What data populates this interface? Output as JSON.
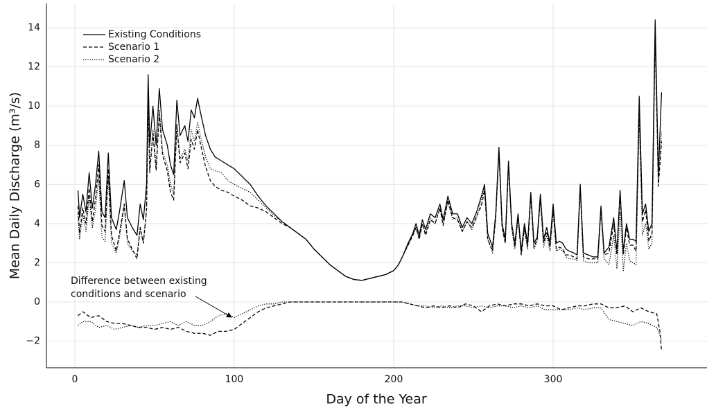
{
  "chart_data": {
    "type": "line",
    "x_label": "Day of the Year",
    "y_label": "Mean Daily Discharge (m³/s)",
    "annotation": [
      "Difference between existing",
      "conditions and scenario"
    ],
    "xlim": [
      -17.8,
      396.5
    ],
    "ylim": [
      -3.36,
      15.24
    ],
    "xticks": [
      0,
      100,
      200,
      300
    ],
    "yticks": [
      {
        "value": -2,
        "label": "−2"
      },
      0,
      2,
      4,
      6,
      8,
      10,
      12,
      14
    ],
    "grid": true,
    "legend": "upper left",
    "x": [
      2,
      3,
      5,
      7,
      9,
      11,
      13,
      15,
      17,
      19,
      21,
      23,
      26,
      28,
      31,
      33,
      36,
      39,
      41,
      43,
      45,
      46,
      47,
      49,
      51,
      53,
      55,
      58,
      60,
      62,
      64,
      66,
      69,
      71,
      73,
      75,
      77,
      79,
      82,
      85,
      88,
      92,
      96,
      100,
      105,
      110,
      115,
      120,
      125,
      130,
      135,
      140,
      145,
      150,
      155,
      160,
      165,
      170,
      175,
      180,
      185,
      190,
      195,
      200,
      203,
      206,
      209,
      212,
      214,
      216,
      218,
      220,
      223,
      226,
      229,
      231,
      234,
      237,
      240,
      243,
      246,
      249,
      252,
      255,
      257,
      259,
      262,
      264,
      266,
      268,
      270,
      272,
      274,
      276,
      278,
      280,
      282,
      284,
      286,
      288,
      290,
      292,
      294,
      296,
      298,
      300,
      302,
      304,
      306,
      308,
      310,
      313,
      315,
      317,
      319,
      322,
      325,
      328,
      330,
      332,
      335,
      338,
      340,
      342,
      344,
      346,
      348,
      350,
      352,
      354,
      356,
      358,
      360,
      362,
      364,
      366,
      368
    ],
    "series": [
      {
        "name": "Existing Conditions",
        "color": "#000000",
        "dash": "solid",
        "values": [
          5.7,
          4.3,
          5.5,
          4.6,
          6.6,
          4.8,
          6.0,
          7.7,
          4.6,
          4.3,
          7.6,
          4.3,
          3.7,
          4.6,
          6.2,
          4.3,
          3.8,
          3.4,
          5.0,
          4.2,
          6.0,
          11.6,
          8.0,
          10.0,
          8.0,
          10.9,
          8.8,
          8.0,
          7.0,
          6.5,
          10.3,
          8.5,
          9.0,
          8.2,
          9.8,
          9.4,
          10.4,
          9.6,
          8.5,
          7.8,
          7.4,
          7.2,
          7.0,
          6.8,
          6.4,
          6.0,
          5.4,
          4.9,
          4.5,
          4.1,
          3.8,
          3.5,
          3.2,
          2.7,
          2.3,
          1.9,
          1.6,
          1.3,
          1.15,
          1.1,
          1.2,
          1.3,
          1.4,
          1.6,
          1.9,
          2.4,
          3.0,
          3.5,
          4.0,
          3.4,
          4.2,
          3.7,
          4.5,
          4.3,
          5.0,
          4.2,
          5.4,
          4.5,
          4.5,
          3.8,
          4.3,
          4.0,
          4.6,
          5.4,
          6.0,
          3.5,
          2.8,
          4.5,
          7.9,
          4.0,
          3.2,
          7.2,
          4.0,
          3.0,
          4.5,
          2.6,
          4.0,
          3.0,
          5.6,
          3.0,
          3.3,
          5.5,
          3.2,
          3.8,
          3.0,
          5.0,
          3.0,
          3.1,
          3.0,
          2.7,
          2.6,
          2.5,
          2.4,
          6.0,
          2.5,
          2.4,
          2.3,
          2.3,
          4.9,
          2.5,
          2.8,
          4.3,
          2.6,
          5.7,
          2.6,
          4.0,
          3.2,
          3.2,
          3.1,
          10.5,
          4.5,
          5.0,
          3.6,
          4.0,
          14.4,
          6.5,
          10.7
        ]
      },
      {
        "name": "Scenario 1",
        "color": "#000000",
        "dash": "dashed",
        "values": [
          4.9,
          3.5,
          4.8,
          4.0,
          5.8,
          4.1,
          5.3,
          7.0,
          3.9,
          3.6,
          6.8,
          3.4,
          2.6,
          3.5,
          5.0,
          3.2,
          2.7,
          2.2,
          3.8,
          3.0,
          4.7,
          10.3,
          6.6,
          8.6,
          6.7,
          9.6,
          7.5,
          6.7,
          5.6,
          5.2,
          9.0,
          7.1,
          7.6,
          6.8,
          8.3,
          7.8,
          8.8,
          8.0,
          6.9,
          6.2,
          5.9,
          5.7,
          5.6,
          5.4,
          5.2,
          4.9,
          4.8,
          4.6,
          4.3,
          4.0,
          3.8,
          3.5,
          3.2,
          2.7,
          2.3,
          1.9,
          1.6,
          1.3,
          1.15,
          1.1,
          1.2,
          1.3,
          1.4,
          1.6,
          1.9,
          2.4,
          2.9,
          3.4,
          3.8,
          3.2,
          4.0,
          3.4,
          4.2,
          4.0,
          4.8,
          3.9,
          5.2,
          4.3,
          4.2,
          3.6,
          4.1,
          3.8,
          4.4,
          4.9,
          5.7,
          3.2,
          2.6,
          4.3,
          7.7,
          3.8,
          3.0,
          7.0,
          3.9,
          2.8,
          4.4,
          2.4,
          3.8,
          2.8,
          5.4,
          2.8,
          3.2,
          5.3,
          3.0,
          3.6,
          2.8,
          4.7,
          2.7,
          2.8,
          2.7,
          2.4,
          2.4,
          2.3,
          2.2,
          5.8,
          2.3,
          2.2,
          2.2,
          2.2,
          4.8,
          2.4,
          2.5,
          4.0,
          2.4,
          5.5,
          2.4,
          3.8,
          2.9,
          2.9,
          2.6,
          10.0,
          4.1,
          4.7,
          3.1,
          3.5,
          13.9,
          5.9,
          8.2
        ]
      },
      {
        "name": "Scenario 2",
        "color": "#000000",
        "dash": "dotted",
        "values": [
          4.5,
          3.2,
          4.5,
          3.6,
          5.4,
          3.8,
          4.7,
          6.4,
          3.3,
          3.1,
          6.4,
          3.0,
          2.5,
          3.3,
          4.9,
          3.0,
          2.6,
          2.4,
          3.8,
          3.0,
          4.8,
          10.4,
          6.8,
          8.8,
          6.9,
          9.8,
          7.7,
          7.0,
          6.0,
          5.5,
          9.1,
          7.3,
          7.8,
          7.2,
          8.8,
          8.2,
          9.2,
          8.4,
          7.4,
          6.8,
          6.7,
          6.6,
          6.2,
          6.0,
          5.8,
          5.6,
          5.2,
          4.8,
          4.4,
          4.1,
          3.8,
          3.5,
          3.2,
          2.7,
          2.3,
          1.9,
          1.6,
          1.3,
          1.15,
          1.1,
          1.2,
          1.3,
          1.4,
          1.6,
          1.9,
          2.4,
          2.9,
          3.4,
          3.8,
          3.2,
          4.0,
          3.5,
          4.3,
          4.0,
          4.8,
          4.0,
          5.1,
          4.2,
          4.3,
          3.6,
          4.1,
          3.7,
          4.3,
          5.2,
          5.8,
          3.2,
          2.5,
          4.3,
          7.7,
          3.8,
          3.0,
          7.0,
          3.7,
          2.7,
          4.3,
          2.4,
          3.7,
          2.7,
          5.4,
          2.7,
          3.1,
          5.3,
          2.8,
          3.4,
          2.6,
          4.6,
          2.6,
          2.7,
          2.6,
          2.3,
          2.2,
          2.2,
          2.1,
          5.7,
          2.1,
          2.0,
          2.0,
          2.0,
          4.6,
          2.2,
          1.9,
          3.4,
          1.7,
          4.6,
          1.6,
          3.0,
          2.1,
          2.0,
          1.9,
          9.4,
          3.4,
          4.0,
          2.7,
          3.0,
          13.3,
          6.1,
          8.7
        ]
      },
      {
        "color": "#000000",
        "dash": "dashed",
        "x": [
          2,
          5,
          10,
          15,
          20,
          25,
          30,
          35,
          40,
          45,
          50,
          55,
          60,
          65,
          70,
          75,
          80,
          85,
          90,
          95,
          100,
          105,
          110,
          115,
          120,
          125,
          130,
          135,
          140,
          145,
          150,
          155,
          160,
          165,
          170,
          175,
          180,
          185,
          190,
          195,
          200,
          205,
          210,
          215,
          220,
          225,
          230,
          235,
          240,
          245,
          250,
          255,
          260,
          265,
          270,
          275,
          280,
          285,
          290,
          295,
          300,
          305,
          310,
          315,
          320,
          325,
          330,
          335,
          340,
          345,
          350,
          355,
          360,
          365,
          367,
          368
        ],
        "values": [
          -0.7,
          -0.5,
          -0.8,
          -0.7,
          -1.0,
          -1.1,
          -1.1,
          -1.2,
          -1.3,
          -1.3,
          -1.4,
          -1.3,
          -1.4,
          -1.3,
          -1.5,
          -1.6,
          -1.6,
          -1.7,
          -1.5,
          -1.5,
          -1.4,
          -1.1,
          -0.8,
          -0.5,
          -0.3,
          -0.2,
          -0.1,
          0,
          0,
          0,
          0,
          0,
          0,
          0,
          0,
          0,
          0,
          0,
          0,
          0,
          0,
          0,
          -0.1,
          -0.2,
          -0.3,
          -0.2,
          -0.3,
          -0.2,
          -0.3,
          -0.1,
          -0.2,
          -0.5,
          -0.2,
          -0.1,
          -0.2,
          -0.1,
          -0.1,
          -0.2,
          -0.1,
          -0.2,
          -0.2,
          -0.4,
          -0.3,
          -0.2,
          -0.2,
          -0.1,
          -0.1,
          -0.3,
          -0.3,
          -0.2,
          -0.5,
          -0.3,
          -0.5,
          -0.6,
          -1.5,
          -2.5
        ]
      },
      {
        "color": "#000000",
        "dash": "dotted",
        "x": [
          2,
          5,
          10,
          15,
          20,
          25,
          30,
          35,
          40,
          45,
          50,
          55,
          60,
          65,
          70,
          75,
          80,
          85,
          90,
          95,
          100,
          105,
          110,
          115,
          120,
          125,
          130,
          135,
          140,
          145,
          150,
          155,
          160,
          165,
          170,
          175,
          180,
          185,
          190,
          195,
          200,
          205,
          210,
          215,
          220,
          225,
          230,
          235,
          240,
          245,
          250,
          255,
          260,
          265,
          270,
          275,
          280,
          285,
          290,
          295,
          300,
          305,
          310,
          315,
          320,
          325,
          330,
          335,
          340,
          345,
          350,
          355,
          360,
          365,
          367,
          368
        ],
        "values": [
          -1.2,
          -1.0,
          -1.0,
          -1.3,
          -1.2,
          -1.4,
          -1.3,
          -1.2,
          -1.3,
          -1.2,
          -1.2,
          -1.1,
          -1.0,
          -1.2,
          -1.0,
          -1.2,
          -1.2,
          -1.0,
          -0.7,
          -0.6,
          -0.8,
          -0.6,
          -0.4,
          -0.2,
          -0.1,
          -0.1,
          0,
          0,
          0,
          0,
          0,
          0,
          0,
          0,
          0,
          0,
          0,
          0,
          0,
          0,
          0,
          0,
          -0.1,
          -0.2,
          -0.2,
          -0.3,
          -0.2,
          -0.3,
          -0.2,
          -0.2,
          -0.3,
          -0.2,
          -0.3,
          -0.2,
          -0.2,
          -0.3,
          -0.2,
          -0.3,
          -0.2,
          -0.4,
          -0.4,
          -0.4,
          -0.4,
          -0.3,
          -0.4,
          -0.3,
          -0.3,
          -0.9,
          -1.0,
          -1.1,
          -1.2,
          -1.0,
          -1.1,
          -1.3,
          -1.7,
          -2.0
        ]
      }
    ]
  }
}
